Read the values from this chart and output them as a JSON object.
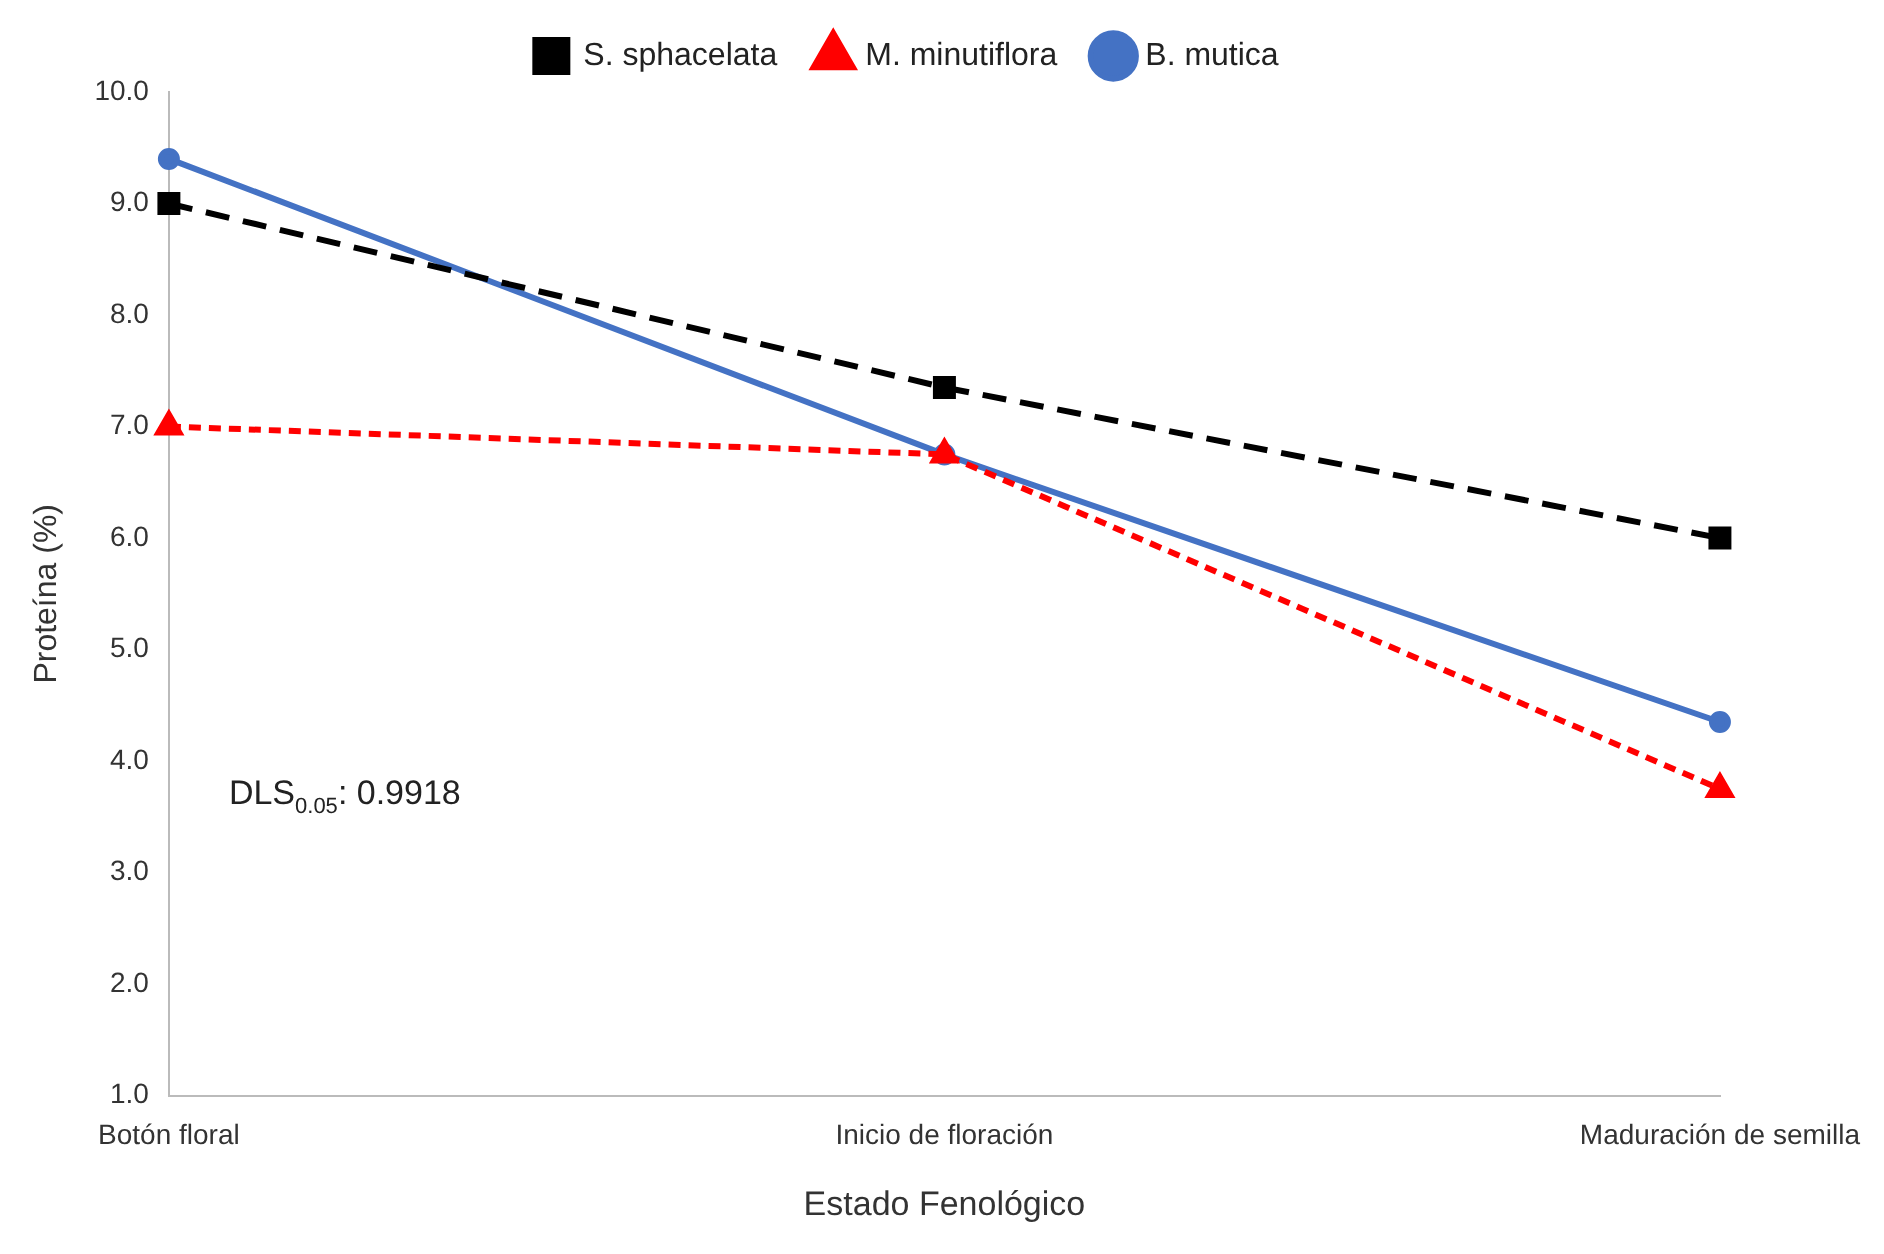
{
  "chart_data": {
    "type": "line",
    "xlabel": "Estado Fenológico",
    "ylabel": "Proteína (%)",
    "categories": [
      "Botón floral",
      "Inicio de floración",
      "Maduración de semilla"
    ],
    "series": [
      {
        "name": "B. mutica",
        "color": "#4472c4",
        "values": [
          9.4,
          6.75,
          4.35
        ],
        "marker": "circle",
        "line_style": "solid"
      },
      {
        "name": "M. minutiflora",
        "color": "#ff0000",
        "values": [
          7.0,
          6.75,
          3.75
        ],
        "marker": "triangle",
        "line_style": "dotted"
      },
      {
        "name": "S. sphacelata",
        "color": "#000000",
        "values": [
          9.0,
          7.35,
          6.0
        ],
        "marker": "square",
        "line_style": "dashed"
      }
    ],
    "ylim": [
      1,
      10
    ],
    "yticks": [
      {
        "value": 1,
        "label": "1.0"
      },
      {
        "value": 2,
        "label": "2.0"
      },
      {
        "value": 3,
        "label": "3.0"
      },
      {
        "value": 4,
        "label": "4.0"
      },
      {
        "value": 5,
        "label": "5.0"
      },
      {
        "value": 6,
        "label": "6.0"
      },
      {
        "value": 7,
        "label": "7.0"
      },
      {
        "value": 8,
        "label": "8.0"
      },
      {
        "value": 9,
        "label": "9.0"
      },
      {
        "value": 10,
        "label": "10.0"
      }
    ],
    "grid": false,
    "legend": "top",
    "annotations": [
      "DLS$_{0.05}$: 0.9918"
    ]
  }
}
